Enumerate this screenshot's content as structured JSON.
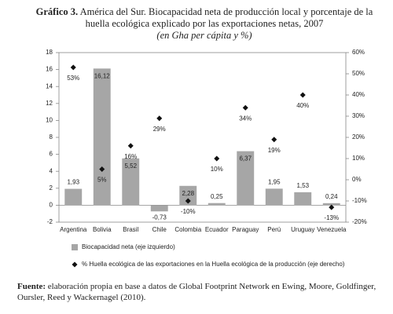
{
  "chart_data": {
    "type": "bar",
    "label": "Gráfico 3.",
    "title": "América del Sur. Biocapacidad neta de producción local y porcentaje de la huella ecológica explicado por las exportaciones netas, 2007",
    "subtitle": "(en Gha per cápita y %)",
    "categories": [
      "Argentina",
      "Bolivia",
      "Brasil",
      "Chile",
      "Colombia",
      "Ecuador",
      "Paraguay",
      "Perú",
      "Uruguay",
      "Venezuela"
    ],
    "series": [
      {
        "name": "Biocapacidad neta (eje izquierdo)",
        "type": "bar",
        "color": "#a6a6a6",
        "values": [
          1.93,
          16.12,
          5.52,
          -0.73,
          2.28,
          0.25,
          6.37,
          1.95,
          1.53,
          0.24
        ],
        "value_labels": [
          "1,93",
          "16,12",
          "5,52",
          "-0,73",
          "2,28",
          "0,25",
          "6,37",
          "1,95",
          "1,53",
          "0,24"
        ]
      },
      {
        "name": "% Huella ecológica de las exportaciones en la Huella ecológica de la producción (eje derecho)",
        "type": "scatter",
        "axis": "y2",
        "color": "#111111",
        "values": [
          53,
          5,
          16,
          29,
          -10,
          10,
          34,
          19,
          40,
          -13
        ],
        "value_labels": [
          "53%",
          "5%",
          "16%",
          "29%",
          "-10%",
          "10%",
          "34%",
          "19%",
          "40%",
          "-13%"
        ]
      }
    ],
    "ylim": [
      -2,
      18
    ],
    "yticks": [
      -2,
      0,
      2,
      4,
      6,
      8,
      10,
      12,
      14,
      16,
      18
    ],
    "y2lim": [
      -20,
      60
    ],
    "y2ticks": [
      {
        "value": -20,
        "label": "-20%"
      },
      {
        "value": -10,
        "label": "-10%"
      },
      {
        "value": 0,
        "label": "0%"
      },
      {
        "value": 10,
        "label": "10%"
      },
      {
        "value": 20,
        "label": "20%"
      },
      {
        "value": 30,
        "label": "30%"
      },
      {
        "value": 40,
        "label": "40%"
      },
      {
        "value": 50,
        "label": "50%"
      },
      {
        "value": 60,
        "label": "60%"
      }
    ],
    "source_label": "Fuente:",
    "source": "elaboración propia en base a datos de Global Footprint Network en Ewing, Moore, Goldfinger, Oursler, Reed y Wackernagel (2010)."
  }
}
